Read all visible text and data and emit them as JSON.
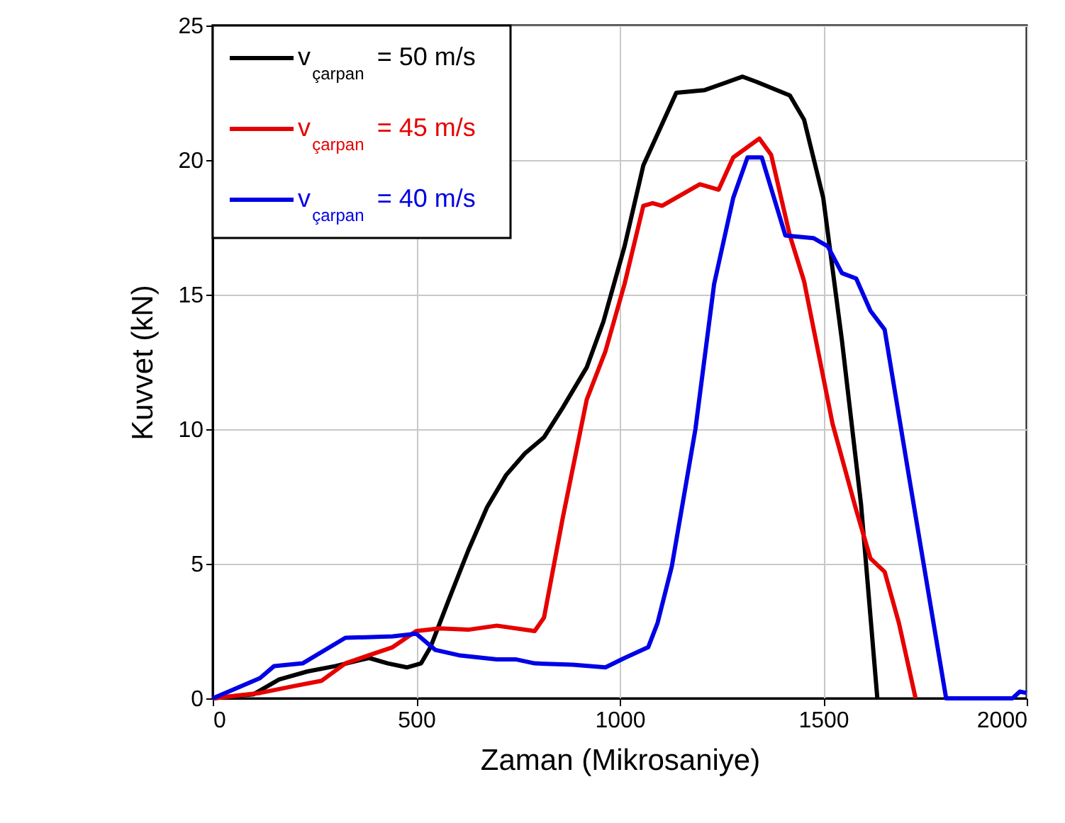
{
  "chart_data": {
    "type": "line",
    "xlabel": "Zaman (Mikrosaniye)",
    "ylabel": "Kuvvet (kN)",
    "xlim": [
      0,
      2000
    ],
    "xticks": [
      0,
      500,
      1000,
      1500,
      2000
    ],
    "ylim": [
      0,
      25
    ],
    "yticks": [
      0,
      5,
      10,
      15,
      20,
      25
    ],
    "grid": true,
    "legend": "top left",
    "marker": "none",
    "line_style": "solid",
    "series": [
      {
        "name": "v$_{çarpan}$ = 50 m/s",
        "color": "#000000",
        "x": [
          0,
          100,
          163,
          233,
          302,
          384,
          430,
          477,
          512,
          535,
          581,
          628,
          674,
          721,
          767,
          814,
          860,
          919,
          960,
          1012,
          1058,
          1139,
          1209,
          1302,
          1337,
          1418,
          1453,
          1500,
          1546,
          1593,
          1633
        ],
        "values": [
          0,
          0.15,
          0.7,
          1.0,
          1.2,
          1.5,
          1.3,
          1.15,
          1.3,
          1.9,
          3.7,
          5.5,
          7.1,
          8.3,
          9.1,
          9.7,
          10.8,
          12.3,
          14,
          16.8,
          19.8,
          22.5,
          22.6,
          23.1,
          22.9,
          22.4,
          21.5,
          18.6,
          13.3,
          7.2,
          0
        ]
      },
      {
        "name": "v$_{çarpan}$ = 45 m/s",
        "color": "#e60000",
        "x": [
          0,
          116,
          198,
          267,
          326,
          384,
          442,
          500,
          558,
          628,
          698,
          791,
          814,
          860,
          919,
          965,
          1012,
          1058,
          1081,
          1104,
          1197,
          1243,
          1279,
          1343,
          1372,
          1418,
          1453,
          1523,
          1581,
          1616,
          1651,
          1686,
          1727
        ],
        "values": [
          0,
          0.2,
          0.45,
          0.65,
          1.3,
          1.6,
          1.9,
          2.5,
          2.6,
          2.55,
          2.7,
          2.5,
          3.0,
          6.7,
          11.1,
          12.9,
          15.4,
          18.3,
          18.4,
          18.3,
          19.1,
          18.9,
          20.1,
          20.8,
          20.2,
          17.2,
          15.5,
          10.2,
          7.0,
          5.2,
          4.7,
          2.8,
          0
        ]
      },
      {
        "name": "v$_{çarpan}$ = 40 m/s",
        "color": "#0000e6",
        "x": [
          0,
          47,
          116,
          151,
          221,
          326,
          442,
          500,
          547,
          605,
          698,
          744,
          791,
          884,
          965,
          1012,
          1070,
          1093,
          1128,
          1186,
          1232,
          1279,
          1314,
          1349,
          1407,
          1476,
          1511,
          1546,
          1581,
          1616,
          1651,
          1709,
          1802,
          1965,
          1983,
          2000
        ],
        "values": [
          0,
          0.3,
          0.75,
          1.2,
          1.3,
          2.25,
          2.3,
          2.4,
          1.8,
          1.6,
          1.45,
          1.45,
          1.3,
          1.25,
          1.15,
          1.5,
          1.9,
          2.8,
          4.9,
          10.0,
          15.4,
          18.6,
          20.1,
          20.1,
          17.2,
          17.1,
          16.8,
          15.8,
          15.6,
          14.4,
          13.7,
          8.4,
          0,
          0,
          0.25,
          0.2
        ]
      }
    ]
  }
}
